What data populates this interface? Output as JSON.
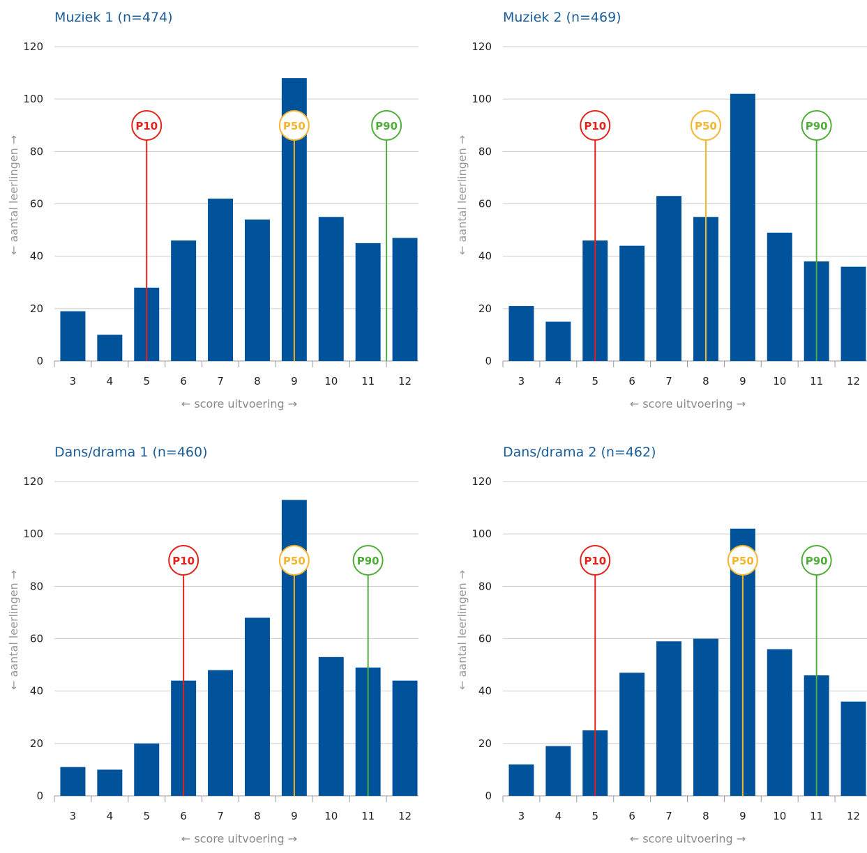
{
  "colors": {
    "bar": "#00539a",
    "grid": "#cccccc",
    "title": "#1b5d99",
    "p10": "#e2231a",
    "p50": "#f5b52e",
    "p90": "#4fad3a"
  },
  "chart_data": [
    {
      "type": "bar",
      "title": "Muziek 1  (n=474)",
      "xlabel": "← score uitvoering →",
      "ylabel": "← aantal leerlingen →",
      "categories": [
        "3",
        "4",
        "5",
        "6",
        "7",
        "8",
        "9",
        "10",
        "11",
        "12"
      ],
      "values": [
        19,
        10,
        28,
        46,
        62,
        54,
        108,
        55,
        45,
        47
      ],
      "ylim": [
        0,
        120
      ],
      "yticks": [
        0,
        20,
        40,
        60,
        80,
        100,
        120
      ],
      "percentiles": [
        {
          "label": "P10",
          "x": 5
        },
        {
          "label": "P50",
          "x": 9
        },
        {
          "label": "P90",
          "x": 11.5
        }
      ]
    },
    {
      "type": "bar",
      "title": "Muziek 2  (n=469)",
      "xlabel": "← score uitvoering →",
      "ylabel": "← aantal leerlingen →",
      "categories": [
        "3",
        "4",
        "5",
        "6",
        "7",
        "8",
        "9",
        "10",
        "11",
        "12"
      ],
      "values": [
        21,
        15,
        46,
        44,
        63,
        55,
        102,
        49,
        38,
        36
      ],
      "ylim": [
        0,
        120
      ],
      "yticks": [
        0,
        20,
        40,
        60,
        80,
        100,
        120
      ],
      "percentiles": [
        {
          "label": "P10",
          "x": 5
        },
        {
          "label": "P50",
          "x": 8
        },
        {
          "label": "P90",
          "x": 11
        }
      ]
    },
    {
      "type": "bar",
      "title": "Dans/drama 1 (n=460)",
      "xlabel": "← score uitvoering →",
      "ylabel": "← aantal leerlingen →",
      "categories": [
        "3",
        "4",
        "5",
        "6",
        "7",
        "8",
        "9",
        "10",
        "11",
        "12"
      ],
      "values": [
        11,
        10,
        20,
        44,
        48,
        68,
        113,
        53,
        49,
        44
      ],
      "ylim": [
        0,
        120
      ],
      "yticks": [
        0,
        20,
        40,
        60,
        80,
        100,
        120
      ],
      "percentiles": [
        {
          "label": "P10",
          "x": 6
        },
        {
          "label": "P50",
          "x": 9
        },
        {
          "label": "P90",
          "x": 11
        }
      ]
    },
    {
      "type": "bar",
      "title": "Dans/drama 2 (n=462)",
      "xlabel": "← score uitvoering →",
      "ylabel": "← aantal leerlingen →",
      "categories": [
        "3",
        "4",
        "5",
        "6",
        "7",
        "8",
        "9",
        "10",
        "11",
        "12"
      ],
      "values": [
        12,
        19,
        25,
        47,
        59,
        60,
        102,
        56,
        46,
        36
      ],
      "ylim": [
        0,
        120
      ],
      "yticks": [
        0,
        20,
        40,
        60,
        80,
        100,
        120
      ],
      "percentiles": [
        {
          "label": "P10",
          "x": 5
        },
        {
          "label": "P50",
          "x": 9
        },
        {
          "label": "P90",
          "x": 11
        }
      ]
    }
  ]
}
